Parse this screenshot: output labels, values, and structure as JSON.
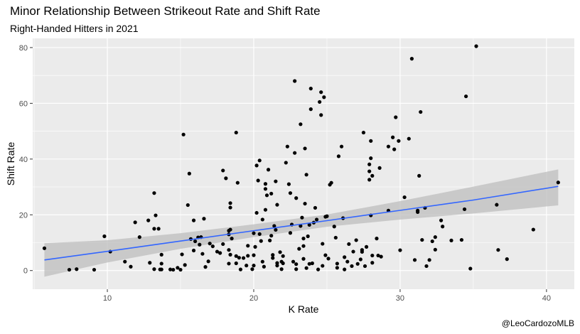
{
  "chart_data": {
    "type": "scatter",
    "title": "Minor Relationship Between Strikeout Rate and Shift Rate",
    "subtitle": "Right-Handed Hitters in 2021",
    "xlabel": "K Rate",
    "ylabel": "Shift Rate",
    "caption": "@LeoCardozoMLB",
    "xlim": [
      4.9,
      41.9
    ],
    "ylim": [
      -6.7,
      83.3
    ],
    "x_ticks": [
      10,
      20,
      30,
      40
    ],
    "y_ticks": [
      0,
      20,
      40,
      60,
      80
    ],
    "grid": true,
    "legend": "none",
    "colors": {
      "panel": "#ebebeb",
      "grid": "#ffffff",
      "point": "#000000",
      "fit": "#3366ff",
      "band": "#bebebe"
    },
    "trend": {
      "x": [
        5.7,
        10,
        15,
        20,
        25,
        30,
        35,
        40.8
      ],
      "fit": [
        3.8,
        6.9,
        10.6,
        14.3,
        17.9,
        21.6,
        25.3,
        30.2
      ],
      "lower": [
        -2.2,
        2.9,
        7.8,
        12.0,
        15.7,
        18.3,
        20.5,
        23.4
      ],
      "upper": [
        9.8,
        10.9,
        13.4,
        16.6,
        20.1,
        24.9,
        30.1,
        36.3
      ]
    },
    "points": [
      [
        5.7,
        8
      ],
      [
        7.4,
        0.3
      ],
      [
        7.9,
        0.5
      ],
      [
        9.1,
        0.3
      ],
      [
        9.8,
        12.3
      ],
      [
        10.2,
        6.8
      ],
      [
        11.2,
        3.2
      ],
      [
        11.6,
        1.4
      ],
      [
        11.9,
        17.3
      ],
      [
        12.2,
        12
      ],
      [
        12.8,
        18
      ],
      [
        12.9,
        2.8
      ],
      [
        13.2,
        27.8
      ],
      [
        13.3,
        19.8
      ],
      [
        13.2,
        15
      ],
      [
        13.5,
        15
      ],
      [
        13.2,
        0.5
      ],
      [
        13.6,
        0.4
      ],
      [
        13.7,
        5.7
      ],
      [
        13.7,
        2.5
      ],
      [
        13.7,
        0.4
      ],
      [
        14.3,
        0.4
      ],
      [
        14.5,
        0.3
      ],
      [
        14.8,
        1
      ],
      [
        15,
        0.3
      ],
      [
        15.1,
        5.8
      ],
      [
        15.2,
        48.8
      ],
      [
        15.3,
        2
      ],
      [
        15.5,
        23.5
      ],
      [
        15.6,
        34.8
      ],
      [
        15.7,
        11.3
      ],
      [
        15.9,
        18
      ],
      [
        16,
        10.5
      ],
      [
        16.2,
        11.9
      ],
      [
        16.4,
        12
      ],
      [
        16.6,
        18.6
      ],
      [
        16.3,
        9.3
      ],
      [
        16.5,
        6
      ],
      [
        15.9,
        7.2
      ],
      [
        16.9,
        3.3
      ],
      [
        16.7,
        1.3
      ],
      [
        17,
        9.7
      ],
      [
        17.2,
        8.7
      ],
      [
        17.5,
        6.8
      ],
      [
        17.7,
        6.3
      ],
      [
        17.9,
        35.9
      ],
      [
        17.9,
        9.5
      ],
      [
        18.1,
        33.1
      ],
      [
        18.3,
        7.4
      ],
      [
        18.3,
        14.3
      ],
      [
        18.3,
        13
      ],
      [
        18.4,
        14.7
      ],
      [
        18.4,
        5.7
      ],
      [
        18.3,
        2.5
      ],
      [
        18.4,
        24.2
      ],
      [
        18.4,
        22.6
      ],
      [
        18.5,
        11.5
      ],
      [
        18.8,
        49.5
      ],
      [
        18.8,
        2.6
      ],
      [
        18.8,
        5.2
      ],
      [
        18.9,
        31.5
      ],
      [
        19,
        4.6
      ],
      [
        19.1,
        0.4
      ],
      [
        19.3,
        4.5
      ],
      [
        19.5,
        1.8
      ],
      [
        19.6,
        5.3
      ],
      [
        19.6,
        8.9
      ],
      [
        19.9,
        0.5
      ],
      [
        20,
        5.5
      ],
      [
        20,
        1.8
      ],
      [
        20,
        13.4
      ],
      [
        20.1,
        8.5
      ],
      [
        20.2,
        37.7
      ],
      [
        20.4,
        39.5
      ],
      [
        20.3,
        32.3
      ],
      [
        20.2,
        20.7
      ],
      [
        20.4,
        13.1
      ],
      [
        20.5,
        10.6
      ],
      [
        20.6,
        3.2
      ],
      [
        20.6,
        18.3
      ],
      [
        20.7,
        1.4
      ],
      [
        20.9,
        27
      ],
      [
        20.8,
        21.8
      ],
      [
        20.8,
        29.3
      ],
      [
        20.8,
        31.1
      ],
      [
        21,
        36.2
      ],
      [
        21.2,
        12.5
      ],
      [
        21.2,
        27.6
      ],
      [
        21.1,
        10.8
      ],
      [
        21.3,
        5.6
      ],
      [
        21.3,
        4.5
      ],
      [
        21.4,
        16
      ],
      [
        21.5,
        32
      ],
      [
        21.6,
        23.6
      ],
      [
        21.5,
        14.6
      ],
      [
        21.6,
        2.7
      ],
      [
        21.6,
        1.8
      ],
      [
        21.8,
        6.6
      ],
      [
        21.9,
        3.2
      ],
      [
        21.9,
        0.5
      ],
      [
        22,
        5.2
      ],
      [
        22,
        2.6
      ],
      [
        22.2,
        38.7
      ],
      [
        22.3,
        44.5
      ],
      [
        22.4,
        31
      ],
      [
        22.5,
        27.8
      ],
      [
        22.5,
        13.5
      ],
      [
        22.6,
        16.5
      ],
      [
        22.7,
        3.2
      ],
      [
        22.8,
        68
      ],
      [
        22.8,
        42.2
      ],
      [
        22.9,
        26
      ],
      [
        22.9,
        2.3
      ],
      [
        22.9,
        0.5
      ],
      [
        23.1,
        7.8
      ],
      [
        23.2,
        52.5
      ],
      [
        23.2,
        16
      ],
      [
        23.3,
        19
      ],
      [
        23.4,
        4.2
      ],
      [
        23.4,
        8.8
      ],
      [
        23.4,
        11.5
      ],
      [
        23.5,
        43.8
      ],
      [
        23.5,
        24
      ],
      [
        23.6,
        0.9
      ],
      [
        23.6,
        34.4
      ],
      [
        23.8,
        2.4
      ],
      [
        23.7,
        12.3
      ],
      [
        23.8,
        16.4
      ],
      [
        23.9,
        65.3
      ],
      [
        23.9,
        57.9
      ],
      [
        24,
        2.6
      ],
      [
        24.1,
        17.2
      ],
      [
        24.2,
        22.5
      ],
      [
        24.3,
        18.3
      ],
      [
        24.4,
        0.4
      ],
      [
        24.6,
        64
      ],
      [
        24.5,
        60.5
      ],
      [
        24.6,
        55.8
      ],
      [
        24.7,
        9.6
      ],
      [
        24.7,
        1.7
      ],
      [
        24.8,
        62.2
      ],
      [
        24.9,
        19.3
      ],
      [
        24.9,
        5.5
      ],
      [
        25,
        19.5
      ],
      [
        25.1,
        4.3
      ],
      [
        25.2,
        30.8
      ],
      [
        25.3,
        31.5
      ],
      [
        25.5,
        15.8
      ],
      [
        25.6,
        11.8
      ],
      [
        25.7,
        2.5
      ],
      [
        25.7,
        1
      ],
      [
        25.8,
        41
      ],
      [
        26,
        44.5
      ],
      [
        26.1,
        18.8
      ],
      [
        26.2,
        4.8
      ],
      [
        26.2,
        0.4
      ],
      [
        26.4,
        3.2
      ],
      [
        26.5,
        9.5
      ],
      [
        26.7,
        1.6
      ],
      [
        26.8,
        6.8
      ],
      [
        27,
        10.9
      ],
      [
        27.1,
        2.4
      ],
      [
        27.3,
        4
      ],
      [
        27.4,
        7.4
      ],
      [
        27.4,
        6.7
      ],
      [
        27.5,
        49.5
      ],
      [
        27.6,
        1.6
      ],
      [
        27.7,
        8.5
      ],
      [
        27.9,
        32.6
      ],
      [
        27.9,
        35.6
      ],
      [
        27.9,
        38.1
      ],
      [
        28,
        40.3
      ],
      [
        28,
        46.5
      ],
      [
        28.1,
        34
      ],
      [
        28,
        19.8
      ],
      [
        28.1,
        5.4
      ],
      [
        28.1,
        2.8
      ],
      [
        28.4,
        11.5
      ],
      [
        28.5,
        5.4
      ],
      [
        28.6,
        36.8
      ],
      [
        28.7,
        5
      ],
      [
        29.2,
        21.5
      ],
      [
        29.2,
        44.5
      ],
      [
        29.5,
        47.8
      ],
      [
        29.6,
        43.5
      ],
      [
        29.7,
        55
      ],
      [
        29.9,
        46.5
      ],
      [
        30,
        7.3
      ],
      [
        30.3,
        26.3
      ],
      [
        30.6,
        47.3
      ],
      [
        30.8,
        76
      ],
      [
        31,
        3.8
      ],
      [
        31.2,
        21.5
      ],
      [
        31.2,
        21
      ],
      [
        31.3,
        34
      ],
      [
        31.4,
        56.9
      ],
      [
        31.5,
        11
      ],
      [
        31.8,
        1.6
      ],
      [
        31.7,
        22.5
      ],
      [
        32,
        3.8
      ],
      [
        32.2,
        10.5
      ],
      [
        32.4,
        7.5
      ],
      [
        32.4,
        12
      ],
      [
        32.8,
        18
      ],
      [
        32.9,
        15.8
      ],
      [
        33.5,
        10.8
      ],
      [
        34.2,
        11
      ],
      [
        34.5,
        62.5
      ],
      [
        34.4,
        22
      ],
      [
        34.8,
        0.7
      ],
      [
        35.2,
        80.5
      ],
      [
        36.6,
        23.6
      ],
      [
        36.7,
        7.4
      ],
      [
        37.3,
        4.1
      ],
      [
        39.1,
        14.7
      ],
      [
        40.8,
        31.6
      ]
    ]
  }
}
